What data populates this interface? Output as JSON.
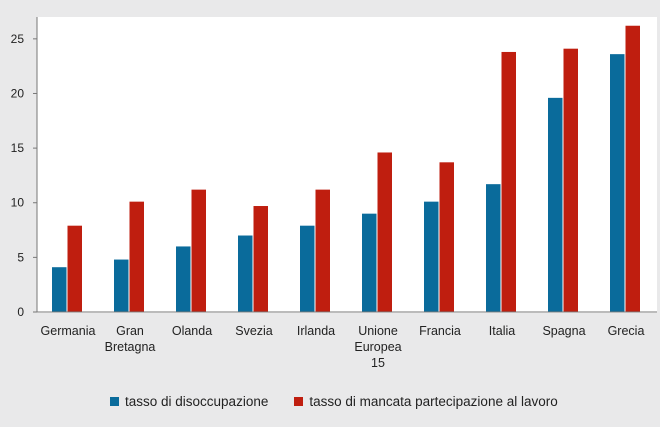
{
  "chart_data": {
    "type": "bar",
    "title": "",
    "xlabel": "",
    "ylabel": "",
    "ylim": [
      0,
      27
    ],
    "yticks": [
      0,
      5,
      10,
      15,
      20,
      25
    ],
    "grid": false,
    "legend_position": "bottom",
    "categories": [
      [
        "Germania"
      ],
      [
        "Gran",
        "Bretagna"
      ],
      [
        "Olanda"
      ],
      [
        "Svezia"
      ],
      [
        "Irlanda"
      ],
      [
        "Unione",
        "Europea",
        "15"
      ],
      [
        "Francia"
      ],
      [
        "Italia"
      ],
      [
        "Spagna"
      ],
      [
        "Grecia"
      ]
    ],
    "series": [
      {
        "name": "tasso di disoccupazione",
        "color": "#0a6b9b",
        "values": [
          4.1,
          4.8,
          6.0,
          7.0,
          7.9,
          9.0,
          10.1,
          11.7,
          19.6,
          23.6
        ]
      },
      {
        "name": "tasso di mancata partecipazione al lavoro",
        "color": "#bf1e0f",
        "values": [
          7.9,
          10.1,
          11.2,
          9.7,
          11.2,
          14.6,
          13.7,
          23.8,
          24.1,
          26.2
        ]
      }
    ]
  }
}
